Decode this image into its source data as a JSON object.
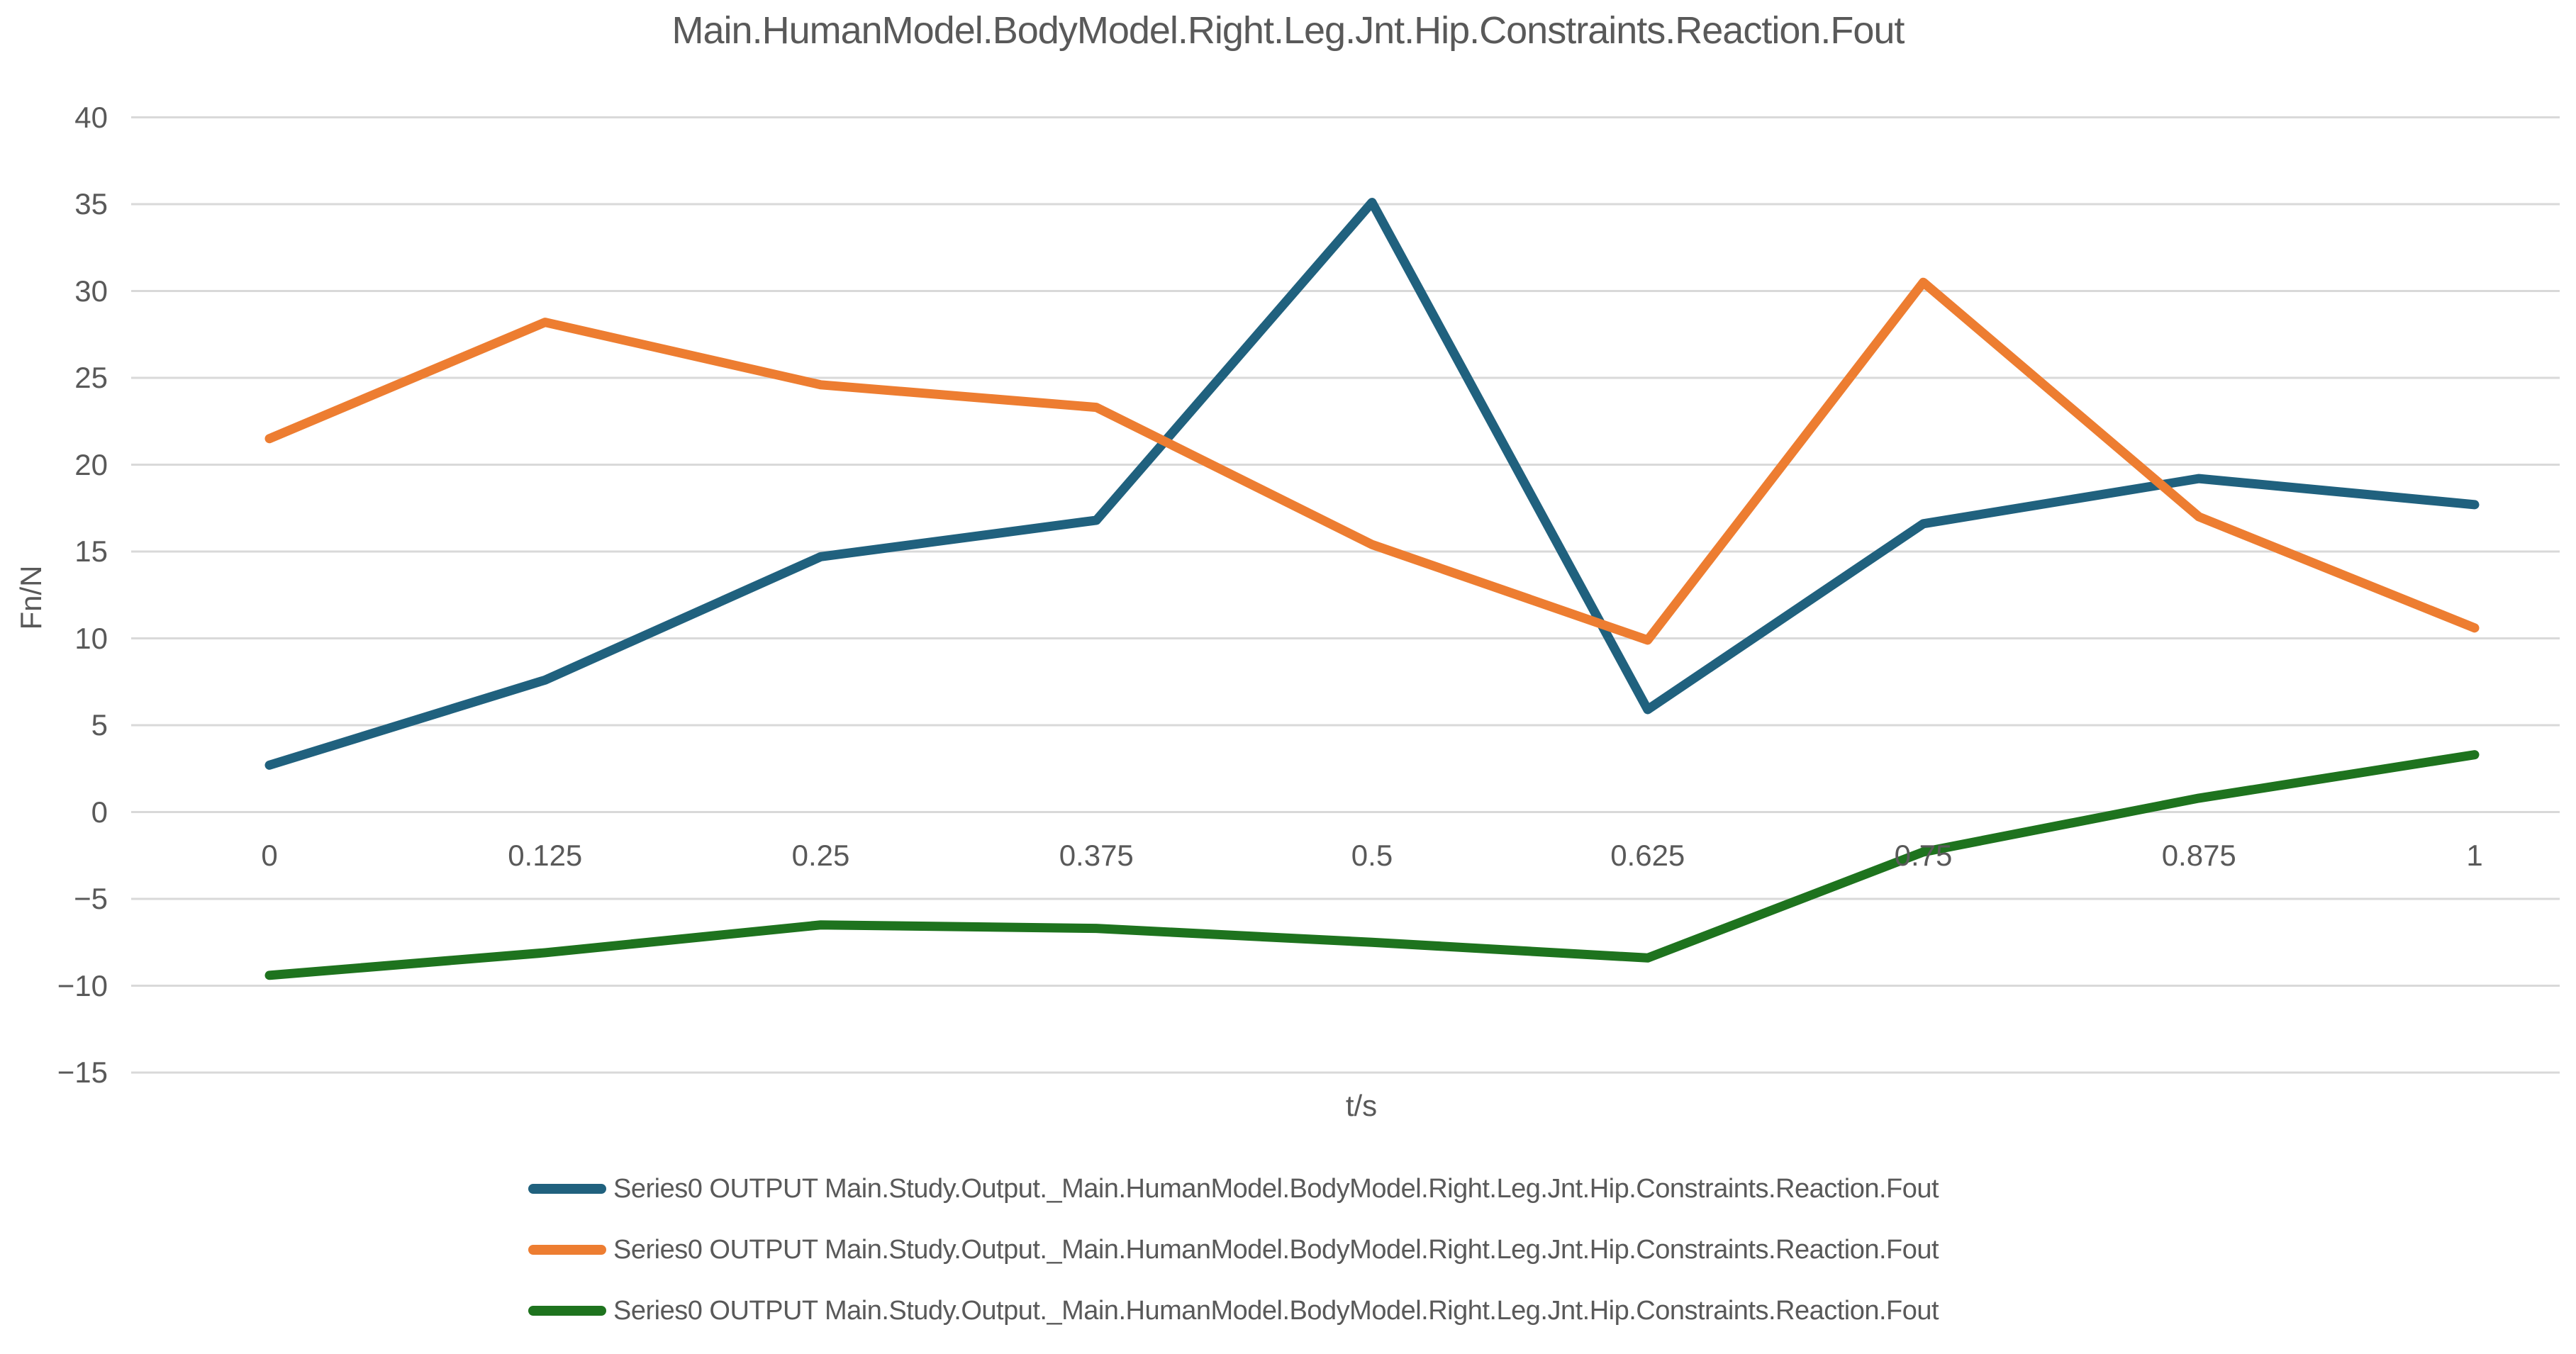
{
  "chart_data": {
    "type": "line",
    "title": "Main.HumanModel.BodyModel.Right.Leg.Jnt.Hip.Constraints.Reaction.Fout",
    "xlabel": "t/s",
    "ylabel": "Fn/N",
    "grid": true,
    "legend_position": "bottom",
    "x": [
      0,
      0.125,
      0.25,
      0.375,
      0.5,
      0.625,
      0.75,
      0.875,
      1
    ],
    "x_tick_labels": [
      "0",
      "0.125",
      "0.25",
      "0.375",
      "0.5",
      "0.625",
      "0.75",
      "0.875",
      "1"
    ],
    "y_ticks": [
      40,
      35,
      30,
      25,
      20,
      15,
      10,
      5,
      0,
      -5,
      -10,
      -15
    ],
    "y_tick_labels": [
      "40",
      "35",
      "30",
      "25",
      "20",
      "15",
      "10",
      "5",
      "0",
      "−5",
      "−10",
      "−15"
    ],
    "ylim": [
      -15,
      40
    ],
    "series": [
      {
        "name": "Series0 OUTPUT Main.Study.Output._Main.HumanModel.BodyModel.Right.Leg.Jnt.Hip.Constraints.Reaction.Fout",
        "color": "#20617E",
        "values": [
          2.7,
          7.6,
          14.7,
          16.8,
          35.1,
          5.9,
          16.6,
          19.2,
          17.7
        ]
      },
      {
        "name": "Series0 OUTPUT Main.Study.Output._Main.HumanModel.BodyModel.Right.Leg.Jnt.Hip.Constraints.Reaction.Fout",
        "color": "#ED7D31",
        "values": [
          21.5,
          28.2,
          24.6,
          23.3,
          15.4,
          9.9,
          30.5,
          17.0,
          10.6
        ]
      },
      {
        "name": "Series0 OUTPUT Main.Study.Output._Main.HumanModel.BodyModel.Right.Leg.Jnt.Hip.Constraints.Reaction.Fout",
        "color": "#1E731E",
        "values": [
          -9.4,
          -8.1,
          -6.5,
          -6.7,
          -7.5,
          -8.4,
          -2.3,
          0.8,
          3.3
        ]
      }
    ]
  },
  "colors": {
    "text": "#595959",
    "gridline": "#D9D9D9",
    "background": "#FFFFFF"
  }
}
